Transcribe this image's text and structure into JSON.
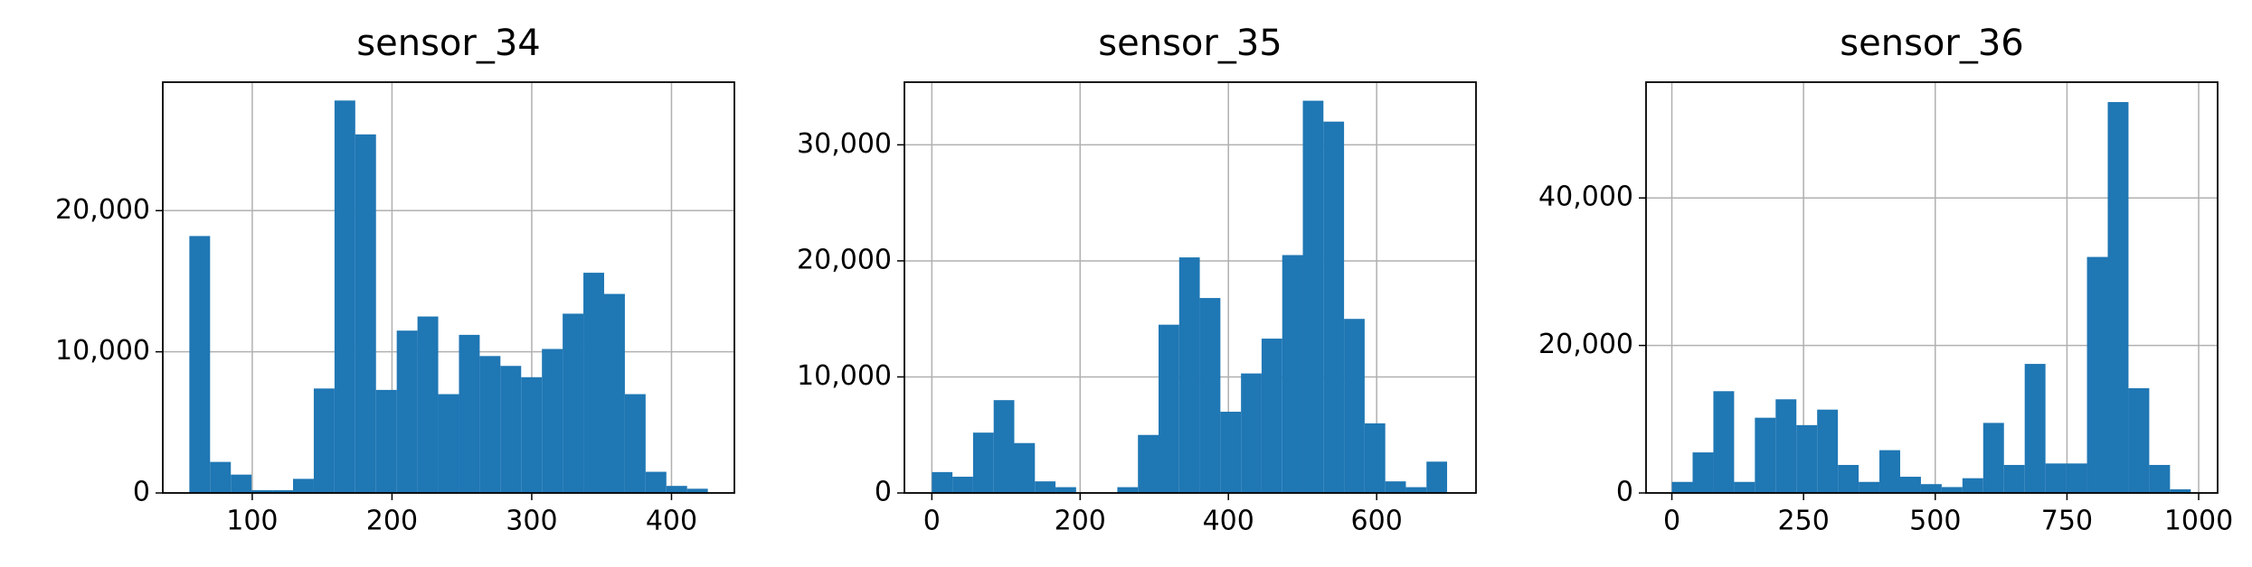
{
  "chart_data": [
    {
      "type": "histogram",
      "title": "sensor_34",
      "color": "#1f77b4",
      "grid": true,
      "bins": [
        55,
        69.84,
        84.68,
        99.52,
        114.36,
        129.2,
        144.04,
        158.88,
        173.72,
        188.56,
        203.4,
        218.24,
        233.08,
        247.92,
        262.76,
        277.6,
        292.44,
        307.28,
        322.12,
        336.96,
        351.8,
        366.64,
        381.48,
        396.32,
        411.16,
        426
      ],
      "values": [
        18200,
        2200,
        1300,
        200,
        200,
        1000,
        7400,
        27800,
        25400,
        7300,
        11500,
        12500,
        7000,
        11200,
        9700,
        9000,
        8200,
        10200,
        12700,
        15600,
        14100,
        7000,
        1500,
        500,
        300
      ],
      "xlim": [
        36,
        445
      ],
      "ylim": [
        0,
        29100
      ],
      "xticks": [
        100,
        200,
        300,
        400
      ],
      "yticks": [
        0,
        {
          "value": 10000,
          "label": "10,000"
        },
        {
          "value": 20000,
          "label": "20,000"
        }
      ]
    },
    {
      "type": "histogram",
      "title": "sensor_35",
      "color": "#1f77b4",
      "grid": true,
      "bins": [
        0,
        27.8,
        55.6,
        83.4,
        111.2,
        139,
        166.8,
        194.6,
        222.4,
        250.2,
        278,
        305.8,
        333.6,
        361.4,
        389.2,
        417,
        444.8,
        472.6,
        500.4,
        528.2,
        556,
        583.8,
        611.6,
        639.4,
        667.2,
        695
      ],
      "values": [
        1800,
        1400,
        5200,
        8000,
        4300,
        1000,
        500,
        0,
        0,
        500,
        5000,
        14500,
        20300,
        16800,
        7000,
        10300,
        13300,
        20500,
        33800,
        32000,
        15000,
        6000,
        1000,
        500,
        2700
      ],
      "xlim": [
        -37,
        734
      ],
      "ylim": [
        0,
        35400
      ],
      "xticks": [
        0,
        200,
        400,
        600
      ],
      "yticks": [
        0,
        {
          "value": 10000,
          "label": "10,000"
        },
        {
          "value": 20000,
          "label": "20,000"
        },
        {
          "value": 30000,
          "label": "30,000"
        }
      ]
    },
    {
      "type": "histogram",
      "title": "sensor_36",
      "color": "#1f77b4",
      "grid": true,
      "bins": [
        0,
        39.4,
        78.8,
        118.2,
        157.6,
        197,
        236.4,
        275.8,
        315.2,
        354.6,
        394,
        433.4,
        472.8,
        512.2,
        551.6,
        591,
        630.4,
        669.8,
        709.2,
        748.6,
        788,
        827.4,
        866.8,
        906.2,
        945.6,
        985
      ],
      "values": [
        1500,
        5500,
        13800,
        1500,
        10200,
        12700,
        9200,
        11300,
        3800,
        1500,
        5800,
        2200,
        1200,
        800,
        2000,
        9500,
        3800,
        17500,
        4000,
        4000,
        32000,
        53000,
        14200,
        3800,
        500
      ],
      "xlim": [
        -49,
        1036
      ],
      "ylim": [
        0,
        55700
      ],
      "xticks": [
        0,
        250,
        500,
        750,
        1000
      ],
      "yticks": [
        0,
        {
          "value": 20000,
          "label": "20,000"
        },
        {
          "value": 40000,
          "label": "40,000"
        }
      ]
    }
  ]
}
